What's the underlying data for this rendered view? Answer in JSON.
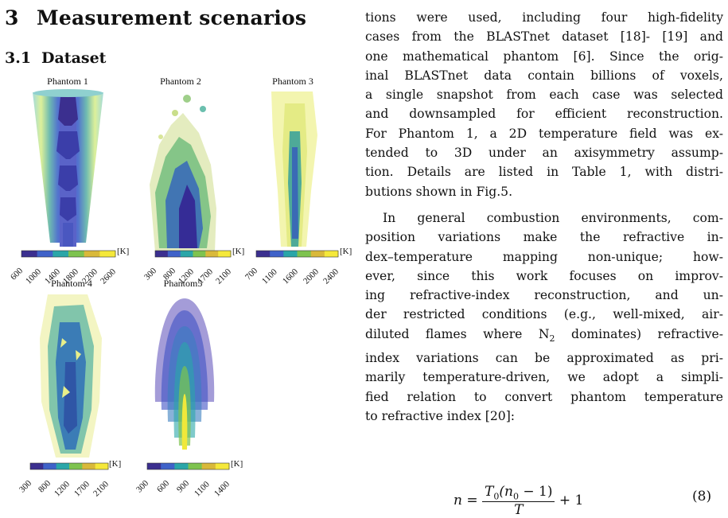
{
  "section": {
    "number": "3",
    "title": "Measurement scenarios"
  },
  "subsection": {
    "number": "3.1",
    "title": "Dataset"
  },
  "figure": {
    "panels": [
      {
        "title": "Phantom 1",
        "unit": "[K]",
        "ticks": [
          "600",
          "1000",
          "1400",
          "1800",
          "2200",
          "2600"
        ]
      },
      {
        "title": "Phantom 2",
        "unit": "[K]",
        "ticks": [
          "300",
          "800",
          "1200",
          "1700",
          "2100"
        ]
      },
      {
        "title": "Phantom 3",
        "unit": "[K]",
        "ticks": [
          "700",
          "1100",
          "1600",
          "2000",
          "2400"
        ]
      },
      {
        "title": "Phantom 4",
        "unit": "[K]",
        "ticks": [
          "300",
          "800",
          "1200",
          "1700",
          "2100"
        ]
      },
      {
        "title": "Phantom5",
        "unit": "[K]",
        "ticks": [
          "300",
          "600",
          "900",
          "1100",
          "1400"
        ]
      }
    ],
    "colormap": [
      "#3b2f8f",
      "#3f62c9",
      "#2aa6a8",
      "#7ec34f",
      "#d9b93a",
      "#f5e83a"
    ]
  },
  "para1_lines": [
    "tions were used, including four high-fidelity",
    "cases from the BLASTnet dataset [18]- [19] and",
    "one mathematical phantom [6]. Since the orig-",
    "inal BLASTnet data contain billions of voxels,",
    "a single snapshot from each case was selected",
    "and downsampled for efficient reconstruction.",
    "For Phantom 1, a 2D temperature field was ex-",
    "tended to 3D under an axisymmetry assump-",
    "tion. Details are listed in Table 1, with distri-",
    "butions shown in Fig.5."
  ],
  "para2_lines": [
    "In general combustion environments, com-",
    "position variations make the refractive in-",
    "dex–temperature mapping non-unique; how-",
    "ever, since this work focuses on improv-",
    "ing refractive-index reconstruction, and un-",
    "der restricted conditions (e.g., well-mixed, air-",
    "diluted flames where N",
    "index variations can be approximated as pri-",
    "marily temperature-driven, we adopt a simpli-",
    "fied relation to convert phantom temperature",
    "to refractive index [20]:"
  ],
  "para2_line7_sub": "2",
  "para2_line7_rest": " dominates) refractive-",
  "equation": {
    "lhs": "n =",
    "num": "T",
    "num_sub": "0",
    "num_rest": "(n",
    "num_sub2": "0",
    "num_tail": " − 1)",
    "den": "T",
    "tail": "+ 1",
    "number": "(8)"
  }
}
